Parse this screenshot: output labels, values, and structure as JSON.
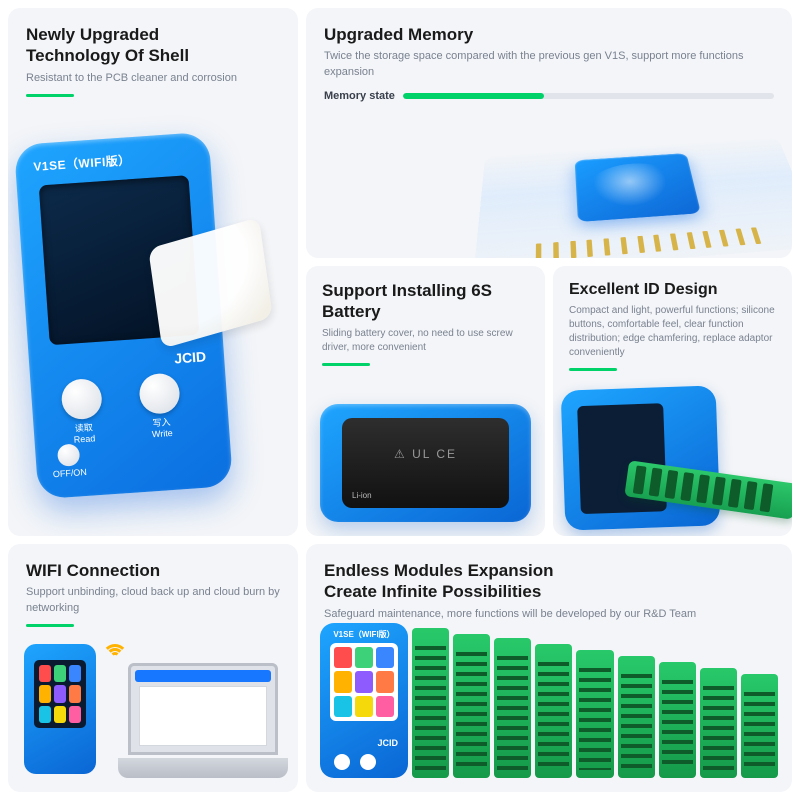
{
  "colors": {
    "panel_bg": "#f3f5f8",
    "accent_green": "#00d26a",
    "device_blue_a": "#1ea5ff",
    "device_blue_b": "#0a66d4",
    "pcb_green_a": "#28c96a",
    "pcb_green_b": "#159a4a",
    "text_heading": "#1a1a1a",
    "text_sub": "#7a8290",
    "wifi_orange": "#ffb300"
  },
  "panel1": {
    "title_l1": "Newly Upgraded",
    "title_l2": "Technology Of Shell",
    "sub": "Resistant to the PCB cleaner and corrosion",
    "device_top": "V1SE（WIFI版）",
    "brand": "JCID",
    "btn_read": "读取\nRead",
    "btn_write": "写入\nWrite",
    "btn_off": "OFF/ON"
  },
  "panel2": {
    "title": "Upgraded Memory",
    "sub": "Twice the storage space compared with the previous gen V1S, support more functions expansion",
    "mem_label": "Memory state",
    "mem_fill_pct": 38
  },
  "panel3": {
    "title": "Support Installing 6S Battery",
    "sub": "Sliding battery cover, no need to use screw driver, more convenient",
    "batt_mark": "Li-ion",
    "batt_cert": "⚠  UL  CE"
  },
  "panel4": {
    "title": "Excellent ID Design",
    "sub": "Compact and light, powerful functions; silicone buttons, comfortable feel, clear function distribution; edge chamfering, replace adaptor conveniently"
  },
  "panel5": {
    "title": "WIFI Connection",
    "sub": "Support unbinding, cloud back up and cloud burn by networking",
    "mini_colors": [
      "#ff4d4d",
      "#3dd17a",
      "#3a86ff",
      "#ffb300",
      "#8e5bff",
      "#ff7a45",
      "#19c3e6",
      "#f5d90a",
      "#ff5fa2"
    ]
  },
  "panel6": {
    "title_l1": "Endless Modules Expansion",
    "title_l2": "Create Infinite Possibilities",
    "sub": "Safeguard maintenance, more functions will be developed by our R&D Team",
    "unit_top": "V1SE（WIFI版）",
    "unit_brand": "JCID",
    "unit_colors": [
      "#ff4d4d",
      "#3dd17a",
      "#3a86ff",
      "#ffb300",
      "#8e5bff",
      "#ff7a45",
      "#19c3e6",
      "#f5d90a",
      "#ff5fa2"
    ],
    "modules": [
      "",
      "",
      "",
      "",
      "",
      "",
      "",
      "",
      ""
    ]
  }
}
